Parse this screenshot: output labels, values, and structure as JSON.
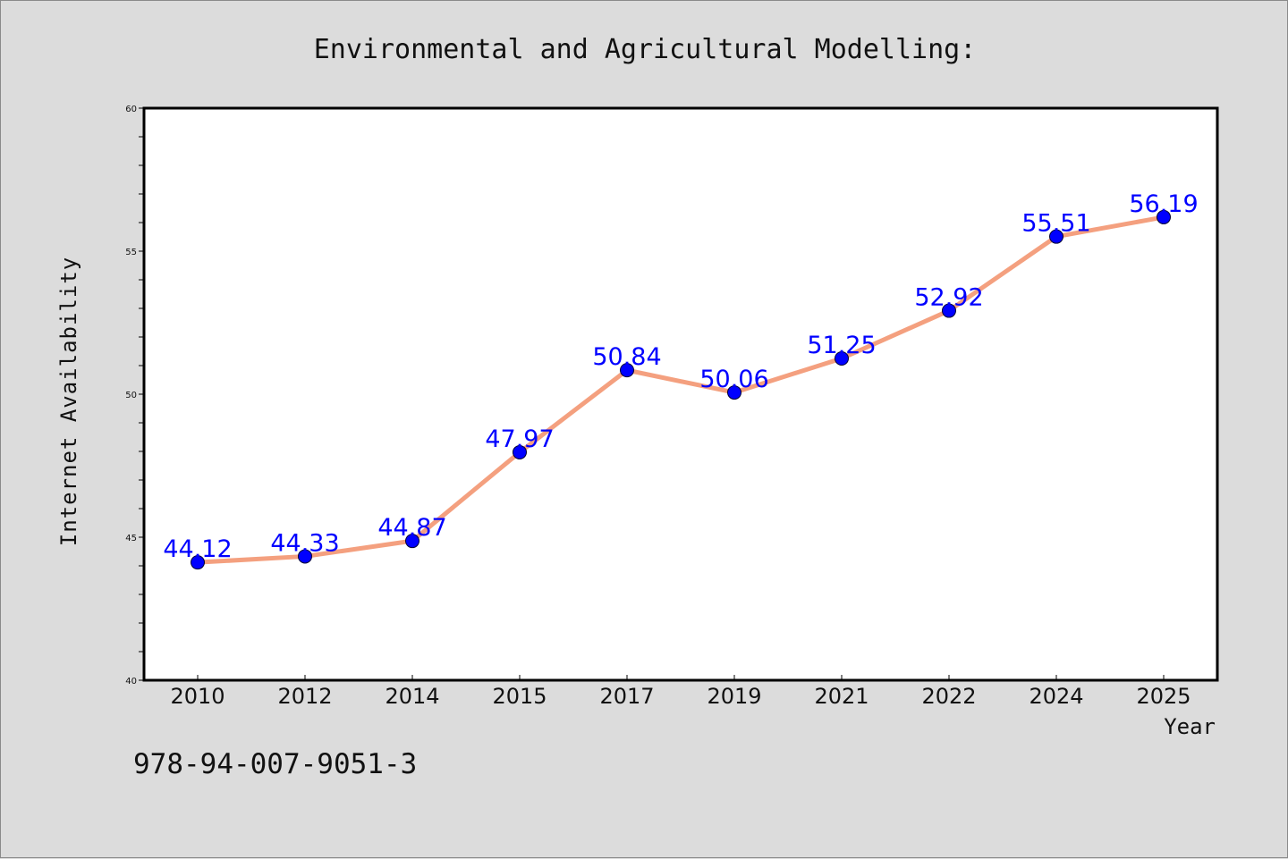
{
  "chart_data": {
    "type": "line",
    "title": "Environmental and Agricultural Modelling:",
    "xlabel": "Year",
    "ylabel": "Internet Availability",
    "categories": [
      "2010",
      "2012",
      "2014",
      "2015",
      "2017",
      "2019",
      "2021",
      "2022",
      "2024",
      "2025"
    ],
    "values": [
      44.12,
      44.33,
      44.87,
      47.97,
      50.84,
      50.06,
      51.25,
      52.92,
      55.51,
      56.19
    ],
    "data_labels": [
      "44.12",
      "44.33",
      "44.87",
      "47.97",
      "50.84",
      "50.06",
      "51.25",
      "52.92",
      "55.51",
      "56.19"
    ],
    "ylim": [
      40,
      60
    ],
    "yticks": [
      40,
      45,
      50,
      55,
      60
    ],
    "ytick_labels": [
      "40",
      "45",
      "50",
      "55",
      "60"
    ],
    "grid": false,
    "legend": "none",
    "colors": {
      "line": "#f4a07f",
      "marker": "#0000ff",
      "data_label": "#0000ff",
      "background": "#dcdcdc",
      "plot_background": "#ffffff"
    }
  },
  "footnote": "978-94-007-9051-3"
}
